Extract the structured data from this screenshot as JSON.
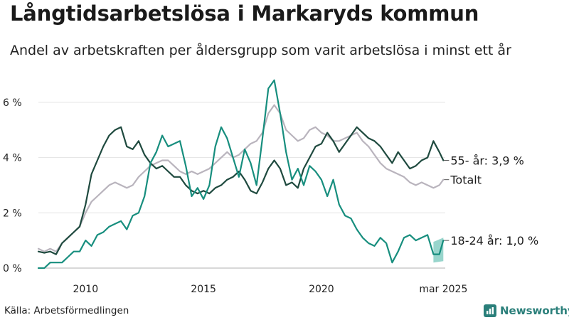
{
  "header": {
    "title": "Långtidsarbetslösa i Markaryds kommun",
    "subtitle": "Andel av arbetskraften per åldersgrupp som varit arbetslösa i minst ett år"
  },
  "footer": {
    "source": "Källa: Arbetsförmedlingen",
    "brand": "Newsworthy"
  },
  "colors": {
    "older": "#1f4a3f",
    "total": "#b9b4bd",
    "young": "#178e7e",
    "band": "#6cc3b6",
    "grid": "#e3e3e3",
    "baseline": "#b0b0b0",
    "brand": "#2a7f7a"
  },
  "chart_data": {
    "type": "line",
    "x_range": [
      2008.0,
      2025.25
    ],
    "ylim": [
      0,
      7
    ],
    "y_ticks": [
      0,
      2,
      4,
      6
    ],
    "y_tick_labels": [
      "0 %",
      "2 %",
      "4 %",
      "6 %"
    ],
    "x_ticks": [
      2010,
      2015,
      2020,
      2025.17
    ],
    "x_tick_labels": [
      "2010",
      "2015",
      "2020",
      "mar 2025"
    ],
    "grid": true,
    "legend": "direct labels at line ends",
    "series": [
      {
        "name": "55- år",
        "end_label": "55- år: 3,9 %",
        "color_key": "older",
        "x": [
          2008.0,
          2008.25,
          2008.5,
          2008.75,
          2009.0,
          2009.25,
          2009.5,
          2009.75,
          2010.0,
          2010.25,
          2010.5,
          2010.75,
          2011.0,
          2011.25,
          2011.5,
          2011.75,
          2012.0,
          2012.25,
          2012.5,
          2012.75,
          2013.0,
          2013.25,
          2013.5,
          2013.75,
          2014.0,
          2014.25,
          2014.5,
          2014.75,
          2015.0,
          2015.25,
          2015.5,
          2015.75,
          2016.0,
          2016.25,
          2016.5,
          2016.75,
          2017.0,
          2017.25,
          2017.5,
          2017.75,
          2018.0,
          2018.25,
          2018.5,
          2018.75,
          2019.0,
          2019.25,
          2019.5,
          2019.75,
          2020.0,
          2020.25,
          2020.5,
          2020.75,
          2021.0,
          2021.25,
          2021.5,
          2021.75,
          2022.0,
          2022.25,
          2022.5,
          2022.75,
          2023.0,
          2023.25,
          2023.5,
          2023.75,
          2024.0,
          2024.25,
          2024.5,
          2024.75,
          2025.0,
          2025.17
        ],
        "y": [
          0.6,
          0.55,
          0.6,
          0.5,
          0.9,
          1.1,
          1.3,
          1.5,
          2.3,
          3.4,
          3.9,
          4.4,
          4.8,
          5.0,
          5.1,
          4.4,
          4.3,
          4.6,
          4.1,
          3.8,
          3.6,
          3.7,
          3.5,
          3.3,
          3.3,
          3.0,
          2.8,
          2.7,
          2.8,
          2.7,
          2.9,
          3.0,
          3.2,
          3.3,
          3.5,
          3.2,
          2.8,
          2.7,
          3.1,
          3.6,
          3.9,
          3.6,
          3.0,
          3.1,
          2.9,
          3.6,
          4.0,
          4.4,
          4.5,
          4.9,
          4.6,
          4.2,
          4.5,
          4.8,
          5.1,
          4.9,
          4.7,
          4.6,
          4.4,
          4.1,
          3.8,
          4.2,
          3.9,
          3.6,
          3.7,
          3.9,
          4.0,
          4.6,
          4.2,
          3.9
        ]
      },
      {
        "name": "Totalt",
        "end_label": "Totalt",
        "color_key": "total",
        "x": [
          2008.0,
          2008.25,
          2008.5,
          2008.75,
          2009.0,
          2009.25,
          2009.5,
          2009.75,
          2010.0,
          2010.25,
          2010.5,
          2010.75,
          2011.0,
          2011.25,
          2011.5,
          2011.75,
          2012.0,
          2012.25,
          2012.5,
          2012.75,
          2013.0,
          2013.25,
          2013.5,
          2013.75,
          2014.0,
          2014.25,
          2014.5,
          2014.75,
          2015.0,
          2015.25,
          2015.5,
          2015.75,
          2016.0,
          2016.25,
          2016.5,
          2016.75,
          2017.0,
          2017.25,
          2017.5,
          2017.75,
          2018.0,
          2018.25,
          2018.5,
          2018.75,
          2019.0,
          2019.25,
          2019.5,
          2019.75,
          2020.0,
          2020.25,
          2020.5,
          2020.75,
          2021.0,
          2021.25,
          2021.5,
          2021.75,
          2022.0,
          2022.25,
          2022.5,
          2022.75,
          2023.0,
          2023.25,
          2023.5,
          2023.75,
          2024.0,
          2024.25,
          2024.5,
          2024.75,
          2025.0,
          2025.17
        ],
        "y": [
          0.7,
          0.6,
          0.7,
          0.6,
          0.9,
          1.1,
          1.3,
          1.5,
          2.0,
          2.4,
          2.6,
          2.8,
          3.0,
          3.1,
          3.0,
          2.9,
          3.0,
          3.3,
          3.5,
          3.7,
          3.8,
          3.9,
          3.9,
          3.7,
          3.5,
          3.4,
          3.5,
          3.4,
          3.5,
          3.6,
          3.8,
          4.0,
          4.2,
          4.0,
          4.1,
          4.3,
          4.5,
          4.6,
          4.9,
          5.6,
          5.9,
          5.6,
          5.0,
          4.8,
          4.6,
          4.7,
          5.0,
          5.1,
          4.9,
          4.8,
          4.6,
          4.6,
          4.7,
          4.8,
          4.9,
          4.6,
          4.4,
          4.1,
          3.8,
          3.6,
          3.5,
          3.4,
          3.3,
          3.1,
          3.0,
          3.1,
          3.0,
          2.9,
          3.0,
          3.2
        ]
      },
      {
        "name": "18-24 år",
        "end_label": "18-24 år: 1,0 %",
        "color_key": "young",
        "x": [
          2008.0,
          2008.25,
          2008.5,
          2008.75,
          2009.0,
          2009.25,
          2009.5,
          2009.75,
          2010.0,
          2010.25,
          2010.5,
          2010.75,
          2011.0,
          2011.25,
          2011.5,
          2011.75,
          2012.0,
          2012.25,
          2012.5,
          2012.75,
          2013.0,
          2013.25,
          2013.5,
          2013.75,
          2014.0,
          2014.25,
          2014.5,
          2014.75,
          2015.0,
          2015.25,
          2015.5,
          2015.75,
          2016.0,
          2016.25,
          2016.5,
          2016.75,
          2017.0,
          2017.25,
          2017.5,
          2017.75,
          2018.0,
          2018.25,
          2018.5,
          2018.75,
          2019.0,
          2019.25,
          2019.5,
          2019.75,
          2020.0,
          2020.25,
          2020.5,
          2020.75,
          2021.0,
          2021.25,
          2021.5,
          2021.75,
          2022.0,
          2022.25,
          2022.5,
          2022.75,
          2023.0,
          2023.25,
          2023.5,
          2023.75,
          2024.0,
          2024.25,
          2024.5,
          2024.75,
          2025.0,
          2025.17
        ],
        "y": [
          0.0,
          0.0,
          0.2,
          0.2,
          0.2,
          0.4,
          0.6,
          0.6,
          1.0,
          0.8,
          1.2,
          1.3,
          1.5,
          1.6,
          1.7,
          1.4,
          1.9,
          2.0,
          2.6,
          3.8,
          4.2,
          4.8,
          4.4,
          4.5,
          4.6,
          3.7,
          2.6,
          2.9,
          2.5,
          3.0,
          4.4,
          5.1,
          4.7,
          4.0,
          3.3,
          4.3,
          3.8,
          3.0,
          4.7,
          6.5,
          6.8,
          5.6,
          4.2,
          3.2,
          3.6,
          3.0,
          3.7,
          3.5,
          3.2,
          2.6,
          3.2,
          2.3,
          1.9,
          1.8,
          1.4,
          1.1,
          0.9,
          0.8,
          1.1,
          0.9,
          0.2,
          0.6,
          1.1,
          1.2,
          1.0,
          1.1,
          1.2,
          0.5,
          0.5,
          1.0
        ]
      }
    ],
    "uncertainty_band": {
      "series": "18-24 år",
      "x": [
        2024.75,
        2025.17
      ],
      "lower": [
        0.2,
        0.25
      ],
      "upper": [
        0.95,
        1.1
      ]
    }
  }
}
